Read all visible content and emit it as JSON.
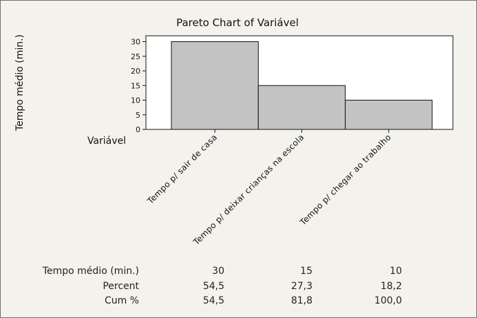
{
  "chart_data": {
    "type": "bar",
    "title": "Pareto Chart of Variável",
    "ylabel": "Tempo médio (min.)",
    "xlabel": "Variável",
    "categories": [
      "Tempo p/ sair de casa",
      "Tempo p/ deixar crianças na escola",
      "Tempo p/ chegar ao trabalho"
    ],
    "values": [
      30,
      15,
      10
    ],
    "ylim": [
      0,
      32
    ],
    "yticks": [
      0,
      5,
      10,
      15,
      20,
      25,
      30
    ],
    "grid": false,
    "table": {
      "rows": [
        {
          "label": "Tempo médio (min.)",
          "values": [
            "30",
            "15",
            "10"
          ]
        },
        {
          "label": "Percent",
          "values": [
            "54,5",
            "27,3",
            "18,2"
          ]
        },
        {
          "label": "Cum %",
          "values": [
            "54,5",
            "81,8",
            "100,0"
          ]
        }
      ]
    }
  },
  "colors": {
    "bar": "#c3c3c3",
    "plot_background": "#ffffff",
    "page_background": "#f4f2ec"
  }
}
